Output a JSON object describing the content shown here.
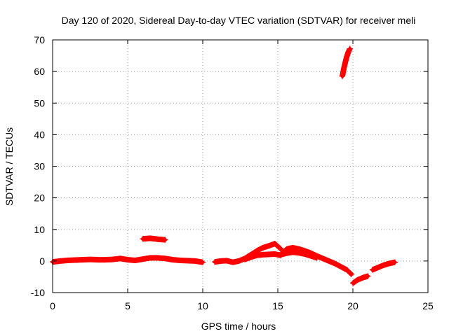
{
  "chart_data": {
    "type": "scatter",
    "title": "Day 120 of 2020, Sidereal Day-to-day VTEC variation (SDTVAR) for receiver meli",
    "xlabel": "GPS time / hours",
    "ylabel": "SDTVAR / TECUs",
    "xlim": [
      0,
      25
    ],
    "ylim": [
      -10,
      70
    ],
    "xticks": [
      0,
      5,
      10,
      15,
      20,
      25
    ],
    "yticks": [
      -10,
      0,
      10,
      20,
      30,
      40,
      50,
      60,
      70
    ],
    "grid": true,
    "legend": "none",
    "series_color": "#ff0000",
    "series": [
      {
        "name": "SDTVAR",
        "segments": [
          {
            "x": [
              0.0,
              0.5,
              1.0,
              1.5,
              2.0,
              2.5,
              3.0,
              3.5,
              4.0,
              4.5,
              5.0,
              5.5,
              6.0,
              6.5,
              7.0,
              7.5,
              8.0,
              8.5,
              9.0,
              9.5,
              10.0
            ],
            "y": [
              -0.3,
              0.0,
              0.2,
              0.3,
              0.4,
              0.5,
              0.4,
              0.4,
              0.5,
              0.8,
              0.4,
              0.2,
              0.6,
              1.0,
              1.0,
              0.8,
              0.4,
              0.2,
              0.1,
              0.0,
              -0.4
            ]
          },
          {
            "x": [
              6.0,
              6.5,
              7.0,
              7.5
            ],
            "y": [
              7.0,
              7.2,
              6.9,
              6.7
            ]
          },
          {
            "x": [
              10.8,
              11.2,
              11.6,
              12.0,
              12.4,
              12.8,
              13.2,
              13.6,
              14.0,
              14.4,
              14.8,
              15.2
            ],
            "y": [
              -0.3,
              0.0,
              0.1,
              -0.4,
              0.0,
              0.8,
              2.0,
              3.2,
              4.2,
              4.8,
              5.5,
              3.8
            ]
          },
          {
            "x": [
              12.8,
              13.2,
              13.6,
              14.0,
              14.4,
              14.8,
              15.2
            ],
            "y": [
              0.5,
              1.2,
              1.8,
              2.0,
              2.1,
              2.2,
              1.8
            ]
          },
          {
            "x": [
              15.2,
              15.6,
              16.0,
              16.4,
              16.8,
              17.2,
              17.6,
              18.0,
              18.4,
              18.8,
              19.2,
              19.6,
              19.9
            ],
            "y": [
              2.2,
              3.8,
              4.2,
              3.8,
              3.2,
              2.5,
              1.6,
              0.8,
              0.0,
              -0.8,
              -1.8,
              -2.8,
              -4.2
            ]
          },
          {
            "x": [
              15.2,
              15.6,
              16.0,
              16.4,
              16.8,
              17.2,
              17.6
            ],
            "y": [
              2.0,
              2.5,
              2.8,
              2.6,
              2.2,
              1.6,
              1.0
            ]
          },
          {
            "x": [
              19.3,
              19.4,
              19.5,
              19.6,
              19.7,
              19.8
            ],
            "y": [
              58.5,
              61.0,
              63.0,
              64.8,
              66.2,
              67.2
            ]
          },
          {
            "x": [
              20.0,
              20.3,
              20.7,
              21.0
            ],
            "y": [
              -7.0,
              -6.0,
              -5.2,
              -4.8
            ]
          },
          {
            "x": [
              21.3,
              21.6,
              22.0,
              22.4,
              22.8
            ],
            "y": [
              -2.8,
              -2.2,
              -1.4,
              -0.8,
              -0.4
            ]
          }
        ]
      }
    ]
  }
}
